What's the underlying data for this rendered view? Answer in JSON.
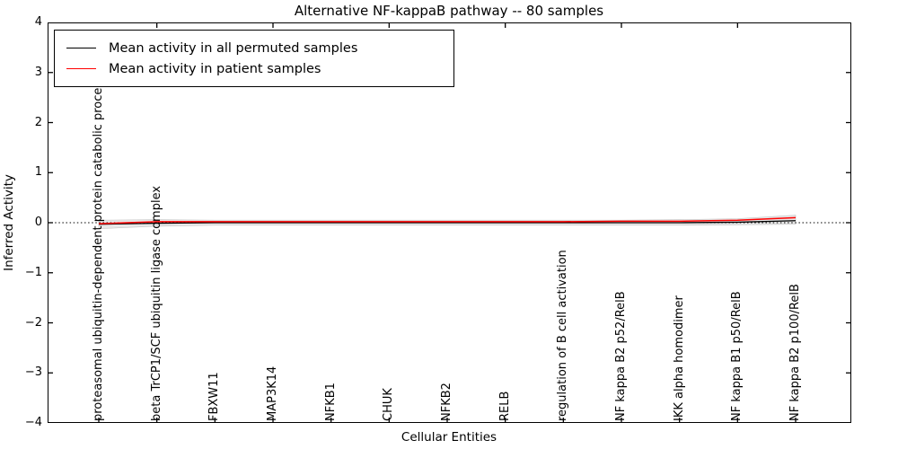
{
  "chart_data": {
    "type": "line",
    "title": "Alternative NF-kappaB pathway -- 80 samples",
    "xlabel": "Cellular Entities",
    "ylabel": "Inferred Activity",
    "ylim": [
      -4,
      4
    ],
    "ytick_labels": [
      "4",
      "3",
      "2",
      "1",
      "0",
      "−1",
      "−2",
      "−3",
      "−4"
    ],
    "ytick_values": [
      4,
      3,
      2,
      1,
      0,
      -1,
      -2,
      -3,
      -4
    ],
    "grid": false,
    "legend_position": "upper left",
    "zero_reference_line": 0,
    "categories": [
      "proteasomal ubiquitin-dependent protein catabolic process",
      "beta TrCP1/SCF ubiquitin ligase complex",
      "FBXW11",
      "MAP3K14",
      "NFKB1",
      "CHUK",
      "NFKB2",
      "RELB",
      "regulation of B cell activation",
      "NF kappa B2 p52/RelB",
      "IKK alpha homodimer",
      "NF kappa B1 p50/RelB",
      "NF kappa B2 p100/RelB"
    ],
    "series": [
      {
        "name": "Mean activity in all permuted samples",
        "color": "#000000",
        "values": [
          -0.03,
          -0.01,
          0.0,
          0.0,
          0.0,
          0.0,
          0.0,
          0.0,
          0.0,
          0.0,
          0.0,
          0.01,
          0.04
        ]
      },
      {
        "name": "Mean activity in patient samples",
        "color": "#ff0000",
        "values": [
          -0.02,
          0.02,
          0.02,
          0.02,
          0.02,
          0.02,
          0.02,
          0.02,
          0.02,
          0.03,
          0.03,
          0.05,
          0.1
        ]
      }
    ],
    "band": {
      "name": "permuted-samples-spread",
      "fill_color": "#e7e7e7",
      "edge_color": "#c8c8c8",
      "upper": [
        0.05,
        0.06,
        0.05,
        0.05,
        0.05,
        0.05,
        0.05,
        0.05,
        0.05,
        0.05,
        0.06,
        0.08,
        0.15
      ],
      "lower": [
        -0.12,
        -0.07,
        -0.05,
        -0.05,
        -0.05,
        -0.05,
        -0.05,
        -0.05,
        -0.05,
        -0.05,
        -0.05,
        -0.04,
        -0.03
      ]
    }
  }
}
